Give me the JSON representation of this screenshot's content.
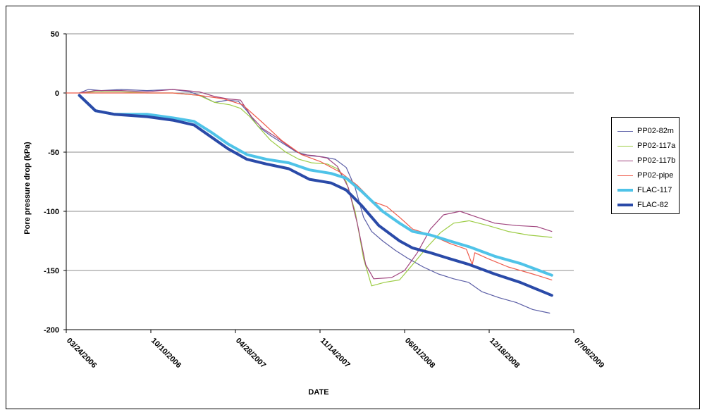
{
  "chart_data": {
    "type": "line",
    "title": "",
    "xlabel": "DATE",
    "ylabel": "Pore pressure drop (kPa)",
    "ylim": [
      -200,
      50
    ],
    "y_ticks": [
      50,
      0,
      -50,
      -100,
      -150,
      -200
    ],
    "y_tick_labels": [
      "50",
      "0",
      "-50",
      "-100",
      "-150",
      "-200"
    ],
    "x_ticks": [
      "2006-03-24",
      "2006-10-10",
      "2007-04-28",
      "2007-11-14",
      "2008-06-01",
      "2008-12-18",
      "2009-07-06"
    ],
    "x_tick_labels": [
      "03/24/2006",
      "10/10/2006",
      "04/28/2007",
      "11/14/2007",
      "06/01/2008",
      "12/18/2008",
      "07/06/2009"
    ],
    "xlim": [
      "2006-03-24",
      "2009-07-06"
    ],
    "grid": "horizontal",
    "legend_position": "right",
    "series": [
      {
        "name": "PP02-82m",
        "color": "#5b5ea6",
        "width": 1.2,
        "points": [
          [
            "2006-04-24",
            0
          ],
          [
            "2006-05-15",
            3
          ],
          [
            "2006-06-15",
            2
          ],
          [
            "2006-08-01",
            3
          ],
          [
            "2006-10-01",
            2
          ],
          [
            "2006-12-01",
            3
          ],
          [
            "2007-01-10",
            1
          ],
          [
            "2007-02-10",
            -3
          ],
          [
            "2007-03-10",
            -8
          ],
          [
            "2007-04-10",
            -6
          ],
          [
            "2007-05-05",
            -7
          ],
          [
            "2007-05-25",
            -15
          ],
          [
            "2007-06-20",
            -28
          ],
          [
            "2007-07-20",
            -36
          ],
          [
            "2007-08-20",
            -43
          ],
          [
            "2007-09-20",
            -50
          ],
          [
            "2007-10-20",
            -53
          ],
          [
            "2007-11-20",
            -54
          ],
          [
            "2007-12-20",
            -56
          ],
          [
            "2008-01-15",
            -63
          ],
          [
            "2008-02-05",
            -80
          ],
          [
            "2008-02-25",
            -105
          ],
          [
            "2008-03-15",
            -117
          ],
          [
            "2008-04-10",
            -125
          ],
          [
            "2008-05-10",
            -133
          ],
          [
            "2008-06-10",
            -140
          ],
          [
            "2008-07-15",
            -147
          ],
          [
            "2008-08-20",
            -153
          ],
          [
            "2008-09-25",
            -157
          ],
          [
            "2008-10-30",
            -160
          ],
          [
            "2008-12-01",
            -168
          ],
          [
            "2009-01-10",
            -173
          ],
          [
            "2009-02-20",
            -177
          ],
          [
            "2009-03-31",
            -183
          ],
          [
            "2009-05-10",
            -186
          ]
        ]
      },
      {
        "name": "PP02-117a",
        "color": "#9ccc44",
        "width": 1.2,
        "points": [
          [
            "2006-04-24",
            0
          ],
          [
            "2006-06-01",
            1
          ],
          [
            "2006-08-01",
            1
          ],
          [
            "2006-10-01",
            0
          ],
          [
            "2006-12-01",
            0
          ],
          [
            "2007-02-01",
            -2
          ],
          [
            "2007-03-10",
            -8
          ],
          [
            "2007-04-15",
            -10
          ],
          [
            "2007-05-10",
            -13
          ],
          [
            "2007-06-01",
            -20
          ],
          [
            "2007-06-25",
            -30
          ],
          [
            "2007-07-20",
            -40
          ],
          [
            "2007-08-25",
            -50
          ],
          [
            "2007-09-25",
            -56
          ],
          [
            "2007-10-25",
            -59
          ],
          [
            "2007-12-01",
            -60
          ],
          [
            "2007-12-25",
            -64
          ],
          [
            "2008-01-15",
            -75
          ],
          [
            "2008-02-05",
            -100
          ],
          [
            "2008-02-25",
            -140
          ],
          [
            "2008-03-15",
            -163
          ],
          [
            "2008-04-15",
            -160
          ],
          [
            "2008-05-20",
            -158
          ],
          [
            "2008-06-20",
            -145
          ],
          [
            "2008-07-25",
            -130
          ],
          [
            "2008-08-25",
            -118
          ],
          [
            "2008-09-25",
            -110
          ],
          [
            "2008-11-01",
            -108
          ],
          [
            "2008-12-15",
            -112
          ],
          [
            "2009-02-01",
            -117
          ],
          [
            "2009-03-20",
            -120
          ],
          [
            "2009-05-15",
            -122
          ]
        ]
      },
      {
        "name": "PP02-117b",
        "color": "#a0447e",
        "width": 1.2,
        "points": [
          [
            "2006-04-24",
            0
          ],
          [
            "2006-06-01",
            2
          ],
          [
            "2006-08-01",
            2
          ],
          [
            "2006-10-01",
            1
          ],
          [
            "2006-12-01",
            3
          ],
          [
            "2007-02-01",
            1
          ],
          [
            "2007-03-10",
            -3
          ],
          [
            "2007-04-10",
            -5
          ],
          [
            "2007-05-10",
            -6
          ],
          [
            "2007-06-05",
            -20
          ],
          [
            "2007-07-01",
            -30
          ],
          [
            "2007-08-01",
            -37
          ],
          [
            "2007-09-01",
            -45
          ],
          [
            "2007-10-01",
            -52
          ],
          [
            "2007-11-01",
            -53
          ],
          [
            "2007-12-01",
            -55
          ],
          [
            "2007-12-25",
            -62
          ],
          [
            "2008-01-20",
            -80
          ],
          [
            "2008-02-10",
            -110
          ],
          [
            "2008-03-01",
            -145
          ],
          [
            "2008-03-20",
            -157
          ],
          [
            "2008-05-01",
            -156
          ],
          [
            "2008-06-01",
            -150
          ],
          [
            "2008-07-01",
            -135
          ],
          [
            "2008-08-01",
            -115
          ],
          [
            "2008-09-01",
            -103
          ],
          [
            "2008-10-10",
            -100
          ],
          [
            "2008-11-20",
            -105
          ],
          [
            "2008-12-31",
            -110
          ],
          [
            "2009-02-20",
            -112
          ],
          [
            "2009-04-10",
            -113
          ],
          [
            "2009-05-15",
            -117
          ]
        ]
      },
      {
        "name": "PP02-pipe",
        "color": "#ee5a4a",
        "width": 1.2,
        "points": [
          [
            "2006-03-24",
            0
          ],
          [
            "2006-07-01",
            0
          ],
          [
            "2006-10-01",
            0
          ],
          [
            "2006-12-01",
            0
          ],
          [
            "2007-02-01",
            -2
          ],
          [
            "2007-04-01",
            -5
          ],
          [
            "2007-05-15",
            -10
          ],
          [
            "2007-07-01",
            -25
          ],
          [
            "2007-08-15",
            -40
          ],
          [
            "2007-10-01",
            -52
          ],
          [
            "2007-11-15",
            -58
          ],
          [
            "2008-01-01",
            -67
          ],
          [
            "2008-02-10",
            -78
          ],
          [
            "2008-03-20",
            -92
          ],
          [
            "2008-04-20",
            -96
          ],
          [
            "2008-05-20",
            -105
          ],
          [
            "2008-06-20",
            -115
          ],
          [
            "2008-08-01",
            -120
          ],
          [
            "2008-09-15",
            -127
          ],
          [
            "2008-10-25",
            -132
          ],
          [
            "2008-11-08",
            -145
          ],
          [
            "2008-11-14",
            -135
          ],
          [
            "2008-12-15",
            -140
          ],
          [
            "2009-02-01",
            -147
          ],
          [
            "2009-03-31",
            -153
          ],
          [
            "2009-05-15",
            -158
          ]
        ]
      },
      {
        "name": "FLAC-117",
        "color": "#4fc3e8",
        "width": 4,
        "points": [
          [
            "2006-04-24",
            -2
          ],
          [
            "2006-06-01",
            -15
          ],
          [
            "2006-07-15",
            -18
          ],
          [
            "2006-10-01",
            -18
          ],
          [
            "2006-12-01",
            -21
          ],
          [
            "2007-01-20",
            -24
          ],
          [
            "2007-03-01",
            -33
          ],
          [
            "2007-04-10",
            -43
          ],
          [
            "2007-05-25",
            -52
          ],
          [
            "2007-07-10",
            -56
          ],
          [
            "2007-09-01",
            -59
          ],
          [
            "2007-10-20",
            -65
          ],
          [
            "2007-12-10",
            -68
          ],
          [
            "2008-01-15",
            -72
          ],
          [
            "2008-02-20",
            -83
          ],
          [
            "2008-04-10",
            -100
          ],
          [
            "2008-05-20",
            -110
          ],
          [
            "2008-06-20",
            -117
          ],
          [
            "2008-08-01",
            -120
          ],
          [
            "2008-09-15",
            -125
          ],
          [
            "2008-11-01",
            -130
          ],
          [
            "2008-12-31",
            -138
          ],
          [
            "2009-03-01",
            -144
          ],
          [
            "2009-05-15",
            -154
          ]
        ]
      },
      {
        "name": "FLAC-82",
        "color": "#2a4aa8",
        "width": 4,
        "points": [
          [
            "2006-04-24",
            -2
          ],
          [
            "2006-06-01",
            -15
          ],
          [
            "2006-07-15",
            -18
          ],
          [
            "2006-10-01",
            -20
          ],
          [
            "2006-12-01",
            -23
          ],
          [
            "2007-01-20",
            -27
          ],
          [
            "2007-03-01",
            -37
          ],
          [
            "2007-04-10",
            -47
          ],
          [
            "2007-05-25",
            -56
          ],
          [
            "2007-07-10",
            -60
          ],
          [
            "2007-09-01",
            -64
          ],
          [
            "2007-10-20",
            -73
          ],
          [
            "2007-12-10",
            -76
          ],
          [
            "2008-01-15",
            -82
          ],
          [
            "2008-02-20",
            -95
          ],
          [
            "2008-04-01",
            -112
          ],
          [
            "2008-05-20",
            -125
          ],
          [
            "2008-06-20",
            -131
          ],
          [
            "2008-08-01",
            -135
          ],
          [
            "2008-09-15",
            -140
          ],
          [
            "2008-11-01",
            -145
          ],
          [
            "2008-12-31",
            -153
          ],
          [
            "2009-03-01",
            -160
          ],
          [
            "2009-05-15",
            -171
          ]
        ]
      }
    ]
  }
}
